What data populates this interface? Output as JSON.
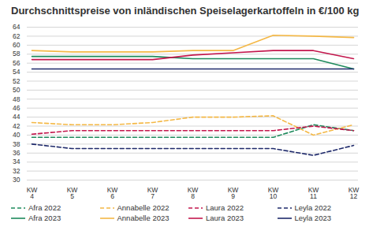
{
  "chart_data": {
    "type": "line",
    "title": "Durchschnittspreise von inländischen Speiselagerkartoffeln in €/100 kg",
    "categories": [
      "KW 4",
      "KW 5",
      "KW 6",
      "KW 7",
      "KW 8",
      "KW 9",
      "KW 10",
      "KW 11",
      "KW 12"
    ],
    "ylim": [
      30,
      64
    ],
    "yticks": [
      30,
      32,
      34,
      36,
      38,
      40,
      42,
      44,
      46,
      48,
      50,
      52,
      54,
      56,
      58,
      60,
      62,
      64
    ],
    "grid": true,
    "legend": "bottom",
    "series": [
      {
        "name": "Afra 2022",
        "color": "#1e8a5c",
        "line_style": "dashed",
        "values": [
          39.5,
          39.5,
          39.5,
          39.5,
          39.5,
          39.5,
          39.5,
          42.3,
          41
        ]
      },
      {
        "name": "Annabelle 2022",
        "color": "#f4b846",
        "line_style": "dashed",
        "values": [
          42.8,
          42.3,
          42.3,
          42.8,
          44,
          44,
          44.3,
          40,
          42.3
        ]
      },
      {
        "name": "Laura 2022",
        "color": "#c3174d",
        "line_style": "dashed",
        "values": [
          40.2,
          41,
          41,
          41,
          41,
          41,
          41,
          42,
          41
        ]
      },
      {
        "name": "Leyla 2022",
        "color": "#1f2a6b",
        "line_style": "dashed",
        "values": [
          38,
          37,
          37,
          37,
          37,
          37,
          37,
          35.5,
          37.7
        ]
      },
      {
        "name": "Afra 2023",
        "color": "#1e8a5c",
        "line_style": "solid",
        "values": [
          57.5,
          57.5,
          57.5,
          57.5,
          57,
          57,
          57,
          57,
          54.7
        ]
      },
      {
        "name": "Annabelle 2023",
        "color": "#f4b846",
        "line_style": "solid",
        "values": [
          58.8,
          58.5,
          58.5,
          58.5,
          58.8,
          58.8,
          62.2,
          62,
          61.7
        ]
      },
      {
        "name": "Laura 2023",
        "color": "#c3174d",
        "line_style": "solid",
        "values": [
          56.8,
          56.8,
          56.8,
          56.8,
          57.8,
          58.3,
          58.8,
          58.8,
          57
        ]
      },
      {
        "name": "Leyla 2023",
        "color": "#1f2a6b",
        "line_style": "solid",
        "values": [
          54.7,
          54.7,
          54.7,
          54.7,
          54.7,
          54.7,
          54.7,
          54.7,
          54.7
        ]
      }
    ]
  }
}
